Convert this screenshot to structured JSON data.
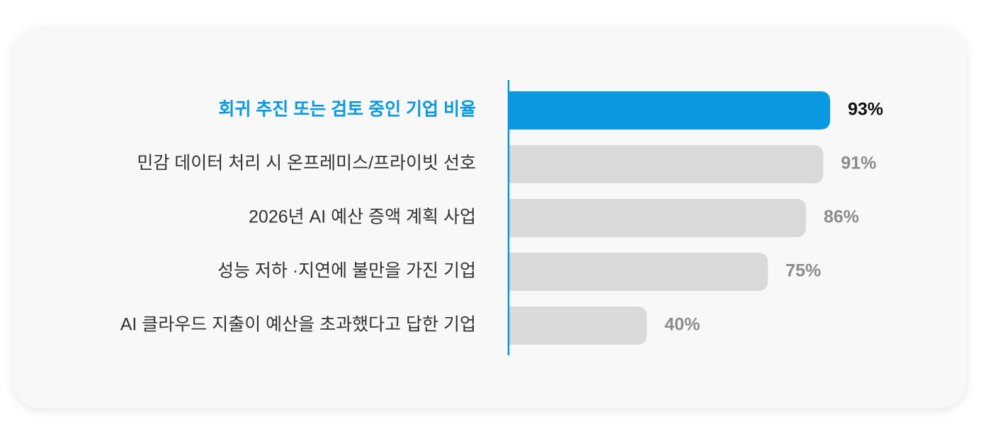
{
  "chart_data": {
    "type": "bar",
    "orientation": "horizontal",
    "categories": [
      "회귀 추진 또는 검토 중인 기업 비율",
      "민감 데이터 처리 시 온프레미스/프라이빗 선호",
      "2026년 AI 예산 증액 계획 사업",
      "성능 저하 ·지연에 불만을 가진 기업",
      "AI 클라우드 지출이 예산을 초과했다고 답한 기업"
    ],
    "values": [
      93,
      91,
      86,
      75,
      40
    ],
    "value_labels": [
      "93%",
      "91%",
      "86%",
      "75%",
      "40%"
    ],
    "colors": [
      "#0a99e0",
      "#d9d9d9",
      "#d9d9d9",
      "#d9d9d9",
      "#d9d9d9"
    ],
    "axis_color": "#0a99e0"
  }
}
